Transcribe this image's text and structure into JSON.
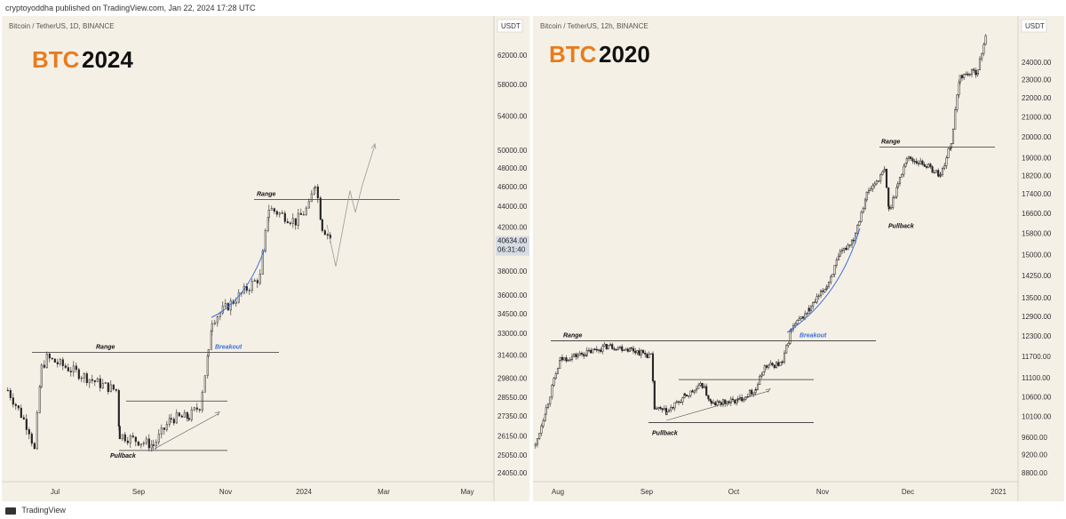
{
  "header": {
    "published": "cryptoyoddha published on TradingView.com, Jan 22, 2024 17:28 UTC"
  },
  "footer": {
    "brand": "TradingView"
  },
  "colors": {
    "background": "#f5f0e6",
    "accent_orange": "#e87c1e",
    "curve_blue": "#3a6fd8",
    "candle": "#222222",
    "current_price_bg": "#d8dce6"
  },
  "chart_data": [
    {
      "type": "candlestick",
      "symbol": "Bitcoin / TetherUS, 1D, BINANCE",
      "title_prefix": "BTC",
      "title_year": "2024",
      "currency": "USDT",
      "y_ticks": [
        62000,
        58000,
        54000,
        50000,
        48000,
        46000,
        44000,
        42000,
        38000,
        36000,
        34500,
        33000,
        31400,
        29800,
        28550,
        27350,
        26150,
        25050,
        24050
      ],
      "y_tick_labels": [
        "62000.00",
        "58000.00",
        "54000.00",
        "50000.00",
        "48000.00",
        "46000.00",
        "44000.00",
        "42000.00",
        "38000.00",
        "36000.00",
        "34500.00",
        "33000.00",
        "31400.00",
        "29800.00",
        "28550.00",
        "27350.00",
        "26150.00",
        "25050.00",
        "24050.00"
      ],
      "x_labels": [
        "Jul",
        "Sep",
        "Nov",
        "2024",
        "Mar",
        "May"
      ],
      "current_price": {
        "value": "40634.00",
        "countdown": "06:31:40"
      },
      "annotations": {
        "range_top_label": "Range",
        "range_bottom_label": "Range",
        "breakout_label": "Breakout",
        "pullback_label": "Pullback"
      },
      "scale": "log"
    },
    {
      "type": "candlestick",
      "symbol": "Bitcoin / TetherUS, 12h, BINANCE",
      "title_prefix": "BTC",
      "title_year": "2020",
      "currency": "USDT",
      "y_ticks": [
        24000,
        23000,
        22000,
        21000,
        20000,
        19000,
        18200,
        17400,
        16600,
        15800,
        15000,
        14250,
        13500,
        12900,
        12300,
        11700,
        11100,
        10600,
        10100,
        9600,
        9200,
        8800
      ],
      "y_tick_labels": [
        "24000.00",
        "23000.00",
        "22000.00",
        "21000.00",
        "20000.00",
        "19000.00",
        "18200.00",
        "17400.00",
        "16600.00",
        "15800.00",
        "15000.00",
        "14250.00",
        "13500.00",
        "12900.00",
        "12300.00",
        "11700.00",
        "11100.00",
        "10600.00",
        "10100.00",
        "9600.00",
        "9200.00",
        "8800.00"
      ],
      "x_labels": [
        "Aug",
        "Sep",
        "Oct",
        "Nov",
        "Dec",
        "2021"
      ],
      "annotations": {
        "range_top_label": "Range",
        "range_bottom_label": "Range",
        "breakout_label": "Breakout",
        "pullback_top_label": "Pullback",
        "pullback_bottom_label": "Pullback"
      },
      "scale": "log"
    }
  ]
}
